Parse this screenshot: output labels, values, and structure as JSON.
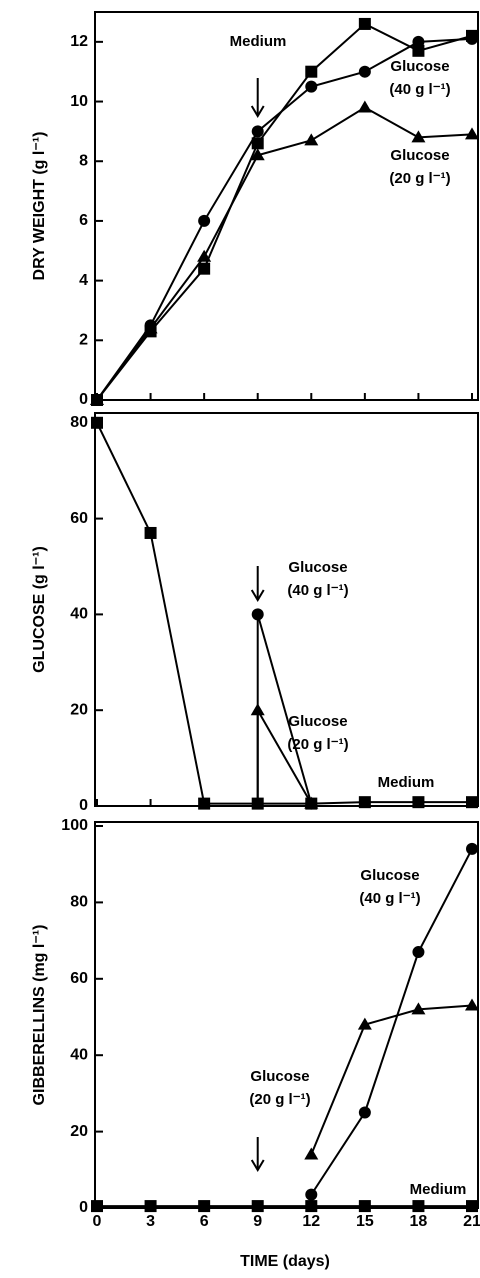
{
  "chart_data": [
    {
      "type": "line",
      "ylabel": "DRY WEIGHT (g l⁻¹)",
      "ylim": [
        0,
        13
      ],
      "yticks": [
        0,
        2,
        4,
        6,
        8,
        10,
        12
      ],
      "series": [
        {
          "name": "Medium",
          "marker": "square",
          "color": "#000000",
          "x": [
            0,
            3,
            6,
            9,
            12,
            15,
            18,
            21
          ],
          "values": [
            0,
            2.3,
            4.4,
            8.6,
            11.0,
            12.6,
            11.7,
            12.2
          ]
        },
        {
          "name": "Glucose (40 g l⁻¹)",
          "marker": "circle",
          "color": "#000000",
          "x": [
            0,
            3,
            6,
            9,
            12,
            15,
            18,
            21
          ],
          "values": [
            0,
            2.5,
            6.0,
            9.0,
            10.5,
            11.0,
            12.0,
            12.1
          ]
        },
        {
          "name": "Glucose (20 g l⁻¹)",
          "marker": "triangle",
          "color": "#000000",
          "x": [
            0,
            3,
            6,
            9,
            12,
            15,
            18,
            21
          ],
          "values": [
            0,
            2.4,
            4.8,
            8.2,
            8.7,
            9.8,
            8.8,
            8.9
          ]
        }
      ]
    },
    {
      "type": "line",
      "ylabel": "GLUCOSE (g l⁻¹)",
      "ylim": [
        0,
        81
      ],
      "yticks": [
        0,
        20,
        40,
        60,
        80
      ],
      "series": [
        {
          "name": "Medium",
          "marker": "square",
          "color": "#000000",
          "x": [
            0,
            3,
            6,
            9,
            12,
            15,
            18,
            21
          ],
          "values": [
            80,
            57,
            0.5,
            0.5,
            0.5,
            0.8,
            0.8,
            0.8
          ]
        },
        {
          "name": "Glucose (40 g l⁻¹)",
          "marker": "circle",
          "color": "#000000",
          "x": [
            9,
            12
          ],
          "values": [
            40,
            0.5
          ]
        },
        {
          "name": "Glucose (20 g l⁻¹)",
          "marker": "triangle",
          "color": "#000000",
          "x": [
            9,
            12
          ],
          "values": [
            20,
            0.5
          ]
        }
      ]
    },
    {
      "type": "line",
      "ylabel": "GIBBERELLINS (mg l⁻¹)",
      "xlabel": "TIME (days)",
      "xlim": [
        0,
        21
      ],
      "xticks": [
        0,
        3,
        6,
        9,
        12,
        15,
        18,
        21
      ],
      "ylim": [
        0,
        100
      ],
      "yticks": [
        0,
        20,
        40,
        60,
        80,
        100
      ],
      "series": [
        {
          "name": "Medium",
          "marker": "square",
          "color": "#000000",
          "x": [
            0,
            3,
            6,
            9,
            12,
            15,
            18,
            21
          ],
          "values": [
            0.5,
            0.5,
            0.5,
            0.5,
            0.5,
            0.5,
            0.5,
            0.5
          ]
        },
        {
          "name": "Glucose (40 g l⁻¹)",
          "marker": "circle",
          "color": "#000000",
          "x": [
            12,
            15,
            18,
            21
          ],
          "values": [
            3.5,
            25,
            67,
            94
          ]
        },
        {
          "name": "Glucose (20 g l⁻¹)",
          "marker": "triangle",
          "color": "#000000",
          "x": [
            12,
            15,
            18,
            21
          ],
          "values": [
            14,
            48,
            52,
            53
          ]
        }
      ]
    }
  ]
}
